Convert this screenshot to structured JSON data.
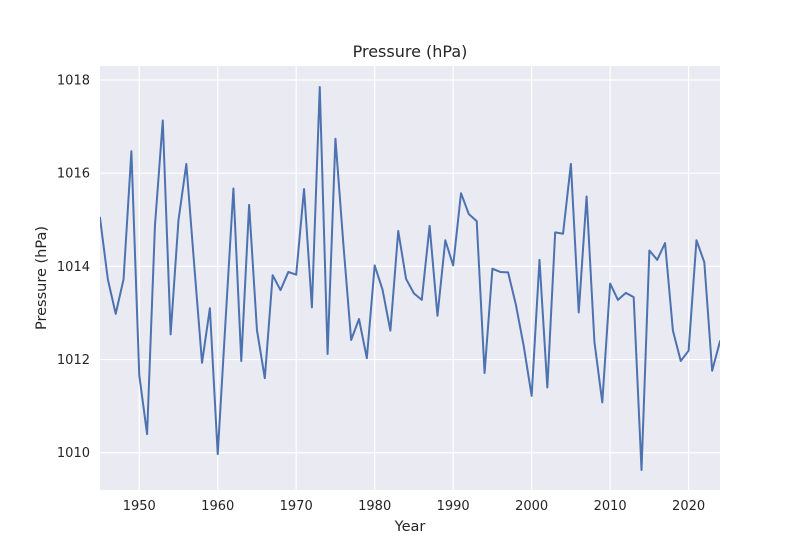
{
  "chart_data": {
    "type": "line",
    "title": "Pressure (hPa)",
    "xlabel": "Year",
    "ylabel": "Pressure (hPa)",
    "xlim": [
      1945,
      2024
    ],
    "ylim": [
      1009.2,
      1018.3
    ],
    "x_ticks": [
      1950,
      1960,
      1970,
      1980,
      1990,
      2000,
      2010,
      2020
    ],
    "y_ticks": [
      1010,
      1012,
      1014,
      1016,
      1018
    ],
    "grid": true,
    "legend": "none",
    "background_color": "#eaeaf2",
    "grid_color": "#ffffff",
    "line_color": "#4c72b0",
    "series": [
      {
        "x": [
          1945,
          1946,
          1947,
          1948,
          1949,
          1950,
          1951,
          1952,
          1953,
          1954,
          1955,
          1956,
          1957,
          1958,
          1959,
          1960,
          1961,
          1962,
          1963,
          1964,
          1965,
          1966,
          1967,
          1968,
          1969,
          1970,
          1971,
          1972,
          1973,
          1974,
          1975,
          1976,
          1977,
          1978,
          1979,
          1980,
          1981,
          1982,
          1983,
          1984,
          1985,
          1986,
          1987,
          1988,
          1989,
          1990,
          1991,
          1992,
          1993,
          1994,
          1995,
          1996,
          1997,
          1998,
          1999,
          2000,
          2001,
          2002,
          2003,
          2004,
          2005,
          2006,
          2007,
          2008,
          2009,
          2010,
          2011,
          2012,
          2013,
          2014,
          2015,
          2016,
          2017,
          2018,
          2019,
          2020,
          2021,
          2022,
          2023,
          2024
        ],
        "values": [
          1015.04,
          1013.72,
          1012.98,
          1013.72,
          1016.47,
          1011.67,
          1010.4,
          1014.87,
          1017.13,
          1012.54,
          1014.99,
          1016.2,
          1014.04,
          1011.93,
          1013.1,
          1009.97,
          1012.84,
          1015.67,
          1011.97,
          1015.32,
          1012.63,
          1011.6,
          1013.81,
          1013.49,
          1013.88,
          1013.82,
          1015.66,
          1013.12,
          1017.85,
          1012.12,
          1016.74,
          1014.5,
          1012.42,
          1012.87,
          1012.03,
          1014.02,
          1013.5,
          1012.62,
          1014.76,
          1013.73,
          1013.42,
          1013.28,
          1014.87,
          1012.94,
          1014.56,
          1014.02,
          1015.57,
          1015.12,
          1014.97,
          1011.71,
          1013.95,
          1013.88,
          1013.87,
          1013.17,
          1012.28,
          1011.22,
          1014.14,
          1011.4,
          1014.73,
          1014.7,
          1016.2,
          1013.01,
          1015.5,
          1012.38,
          1011.08,
          1013.63,
          1013.28,
          1013.43,
          1013.34,
          1009.63,
          1014.34,
          1014.14,
          1014.5,
          1012.62,
          1011.97,
          1012.19,
          1014.56,
          1014.09,
          1011.76,
          1012.39
        ]
      }
    ]
  }
}
